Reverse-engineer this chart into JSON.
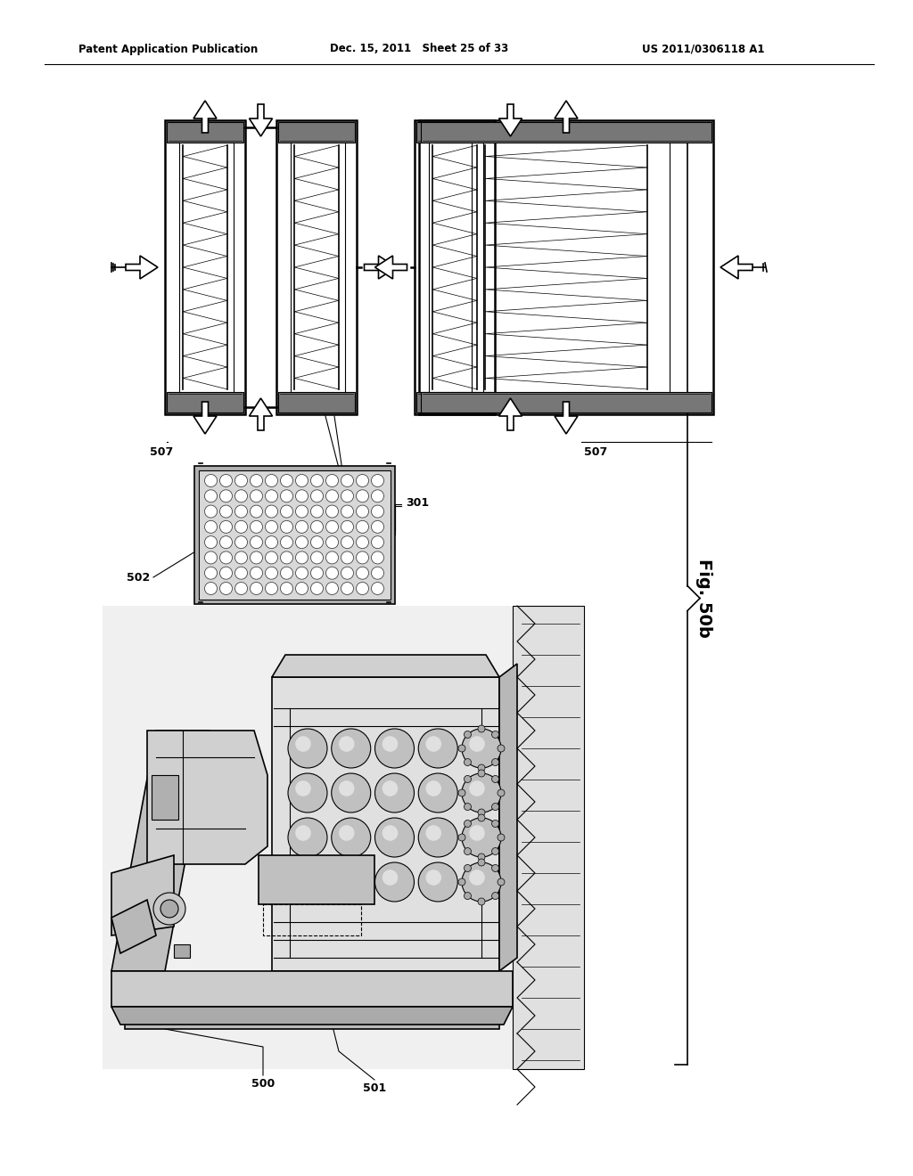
{
  "header_left": "Patent Application Publication",
  "header_center": "Dec. 15, 2011   Sheet 25 of 33",
  "header_right": "US 2011/0306118 A1",
  "fig_label": "Fig. 50b",
  "background": "#ffffff",
  "line_color": "#000000",
  "gray_dark": "#555555",
  "gray_med": "#888888",
  "gray_light": "#cccccc",
  "gray_lighter": "#e8e8e8"
}
